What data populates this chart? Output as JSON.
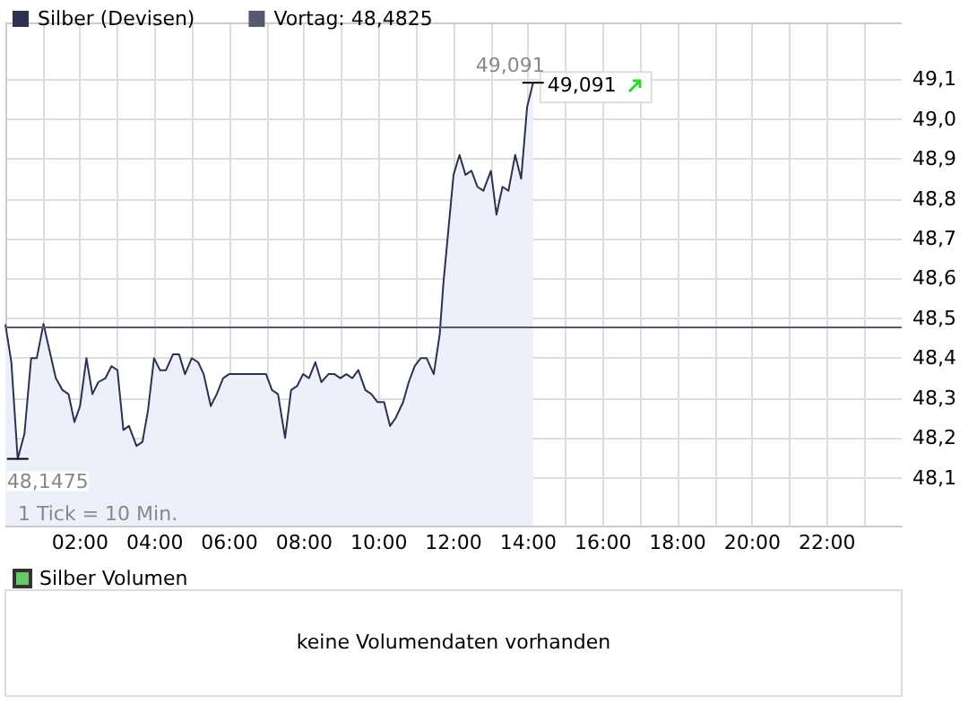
{
  "chart_data": [
    {
      "type": "area",
      "x": [
        0,
        0.16,
        0.33,
        0.51,
        0.69,
        0.84,
        1.02,
        1.18,
        1.35,
        1.53,
        1.69,
        1.85,
        2.0,
        2.17,
        2.33,
        2.49,
        2.68,
        2.84,
        3.0,
        3.16,
        3.31,
        3.51,
        3.67,
        3.82,
        3.98,
        4.14,
        4.3,
        4.49,
        4.65,
        4.81,
        4.99,
        5.16,
        5.31,
        5.5,
        5.66,
        5.83,
        5.99,
        6.98,
        7.14,
        7.3,
        7.49,
        7.65,
        7.81,
        7.97,
        8.13,
        8.3,
        8.46,
        8.65,
        8.81,
        8.97,
        9.13,
        9.29,
        9.45,
        9.64,
        9.8,
        9.96,
        10.14,
        10.3,
        10.45,
        10.65,
        10.8,
        10.96,
        11.12,
        11.28,
        11.47,
        11.63,
        11.73,
        12.0,
        12.16,
        12.32,
        12.48,
        12.64,
        12.8,
        13.0,
        13.15,
        13.31,
        13.47,
        13.65,
        13.81,
        13.97,
        14.13
      ],
      "series": [
        {
          "name": "Silber (Devisen)",
          "color": "#2b3252",
          "values": [
            48.485,
            48.39,
            48.1475,
            48.21,
            48.4,
            48.4,
            48.486,
            48.42,
            48.35,
            48.32,
            48.31,
            48.24,
            48.28,
            48.4,
            48.31,
            48.34,
            48.35,
            48.38,
            48.37,
            48.22,
            48.23,
            48.18,
            48.19,
            48.27,
            48.4,
            48.37,
            48.37,
            48.41,
            48.41,
            48.36,
            48.4,
            48.39,
            48.36,
            48.28,
            48.31,
            48.35,
            48.36,
            48.36,
            48.32,
            48.31,
            48.2,
            48.32,
            48.33,
            48.36,
            48.35,
            48.39,
            48.34,
            48.36,
            48.36,
            48.35,
            48.36,
            48.35,
            48.37,
            48.32,
            48.31,
            48.29,
            48.29,
            48.23,
            48.25,
            48.29,
            48.34,
            48.38,
            48.4,
            48.4,
            48.36,
            48.46,
            48.59,
            48.86,
            48.91,
            48.86,
            48.87,
            48.83,
            48.82,
            48.87,
            48.76,
            48.83,
            48.82,
            48.91,
            48.85,
            49.03,
            49.091
          ]
        }
      ],
      "ref_lines": [
        {
          "axis": "y",
          "value": 48.4825,
          "label": "Vortag: 48,4825",
          "color": "#555a72"
        }
      ],
      "annotations": [
        {
          "text": "49,091",
          "x": 14.13,
          "y": 49.091
        },
        {
          "text": "48,1475",
          "x": 0.33,
          "y": 48.1475
        },
        "1 Tick = 10 Min.",
        "49,091"
      ],
      "xlim": [
        0,
        24
      ],
      "xticks": [
        {
          "value": 1,
          "label": null
        },
        {
          "value": 2,
          "label": "02:00"
        },
        {
          "value": 3,
          "label": null
        },
        {
          "value": 4,
          "label": "04:00"
        },
        {
          "value": 5,
          "label": null
        },
        {
          "value": 6,
          "label": "06:00"
        },
        {
          "value": 7,
          "label": null
        },
        {
          "value": 8,
          "label": "08:00"
        },
        {
          "value": 9,
          "label": null
        },
        {
          "value": 10,
          "label": "10:00"
        },
        {
          "value": 11,
          "label": null
        },
        {
          "value": 12,
          "label": "12:00"
        },
        {
          "value": 13,
          "label": null
        },
        {
          "value": 14,
          "label": "14:00"
        },
        {
          "value": 15,
          "label": null
        },
        {
          "value": 16,
          "label": "16:00"
        },
        {
          "value": 17,
          "label": null
        },
        {
          "value": 18,
          "label": "18:00"
        },
        {
          "value": 19,
          "label": null
        },
        {
          "value": 20,
          "label": "20:00"
        },
        {
          "value": 21,
          "label": null
        },
        {
          "value": 22,
          "label": "22:00"
        },
        {
          "value": 23,
          "label": null
        }
      ],
      "ylim": [
        47.98,
        49.24
      ],
      "yticks": [
        {
          "value": 48.1,
          "label": "48,1"
        },
        {
          "value": 48.2,
          "label": "48,2"
        },
        {
          "value": 48.3,
          "label": "48,3"
        },
        {
          "value": 48.4,
          "label": "48,4"
        },
        {
          "value": 48.5,
          "label": "48,5"
        },
        {
          "value": 48.6,
          "label": "48,6"
        },
        {
          "value": 48.7,
          "label": "48,7"
        },
        {
          "value": 48.8,
          "label": "48,8"
        },
        {
          "value": 48.9,
          "label": "48,9"
        },
        {
          "value": 49.0,
          "label": "49,0"
        },
        {
          "value": 49.1,
          "label": "49,1"
        }
      ],
      "grid": true,
      "legend": "top left",
      "marker": "none"
    },
    {
      "type": "other",
      "series": [
        {
          "name": "Silber Volumen",
          "color": "#66cc66"
        }
      ],
      "legend": "top left",
      "annotations": [
        "keine Volumendaten vorhanden"
      ]
    }
  ]
}
